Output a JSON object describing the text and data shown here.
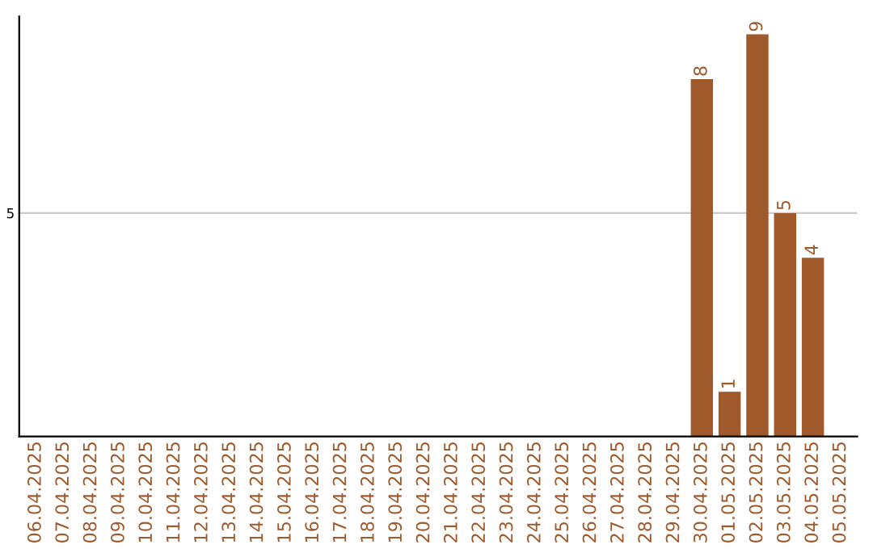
{
  "chart_data": {
    "type": "bar",
    "categories": [
      "06.04.2025",
      "07.04.2025",
      "08.04.2025",
      "09.04.2025",
      "10.04.2025",
      "11.04.2025",
      "12.04.2025",
      "13.04.2025",
      "14.04.2025",
      "15.04.2025",
      "16.04.2025",
      "17.04.2025",
      "18.04.2025",
      "19.04.2025",
      "20.04.2025",
      "21.04.2025",
      "22.04.2025",
      "23.04.2025",
      "24.04.2025",
      "25.04.2025",
      "26.04.2025",
      "27.04.2025",
      "28.04.2025",
      "29.04.2025",
      "30.04.2025",
      "01.05.2025",
      "02.05.2025",
      "03.05.2025",
      "04.05.2025",
      "05.05.2025"
    ],
    "values": [
      null,
      null,
      null,
      null,
      null,
      null,
      null,
      null,
      null,
      null,
      null,
      null,
      null,
      null,
      null,
      null,
      null,
      null,
      null,
      null,
      null,
      null,
      null,
      null,
      8,
      1,
      9,
      5,
      4,
      null
    ],
    "value_labels": [
      null,
      null,
      null,
      null,
      null,
      null,
      null,
      null,
      null,
      null,
      null,
      null,
      null,
      null,
      null,
      null,
      null,
      null,
      null,
      null,
      null,
      null,
      null,
      null,
      "8",
      "1",
      "9",
      "5",
      "4",
      null
    ],
    "color": "#a0592a",
    "ylim": [
      0,
      9.4
    ],
    "yticks": [
      5
    ],
    "grid": "y",
    "legend": false
  }
}
